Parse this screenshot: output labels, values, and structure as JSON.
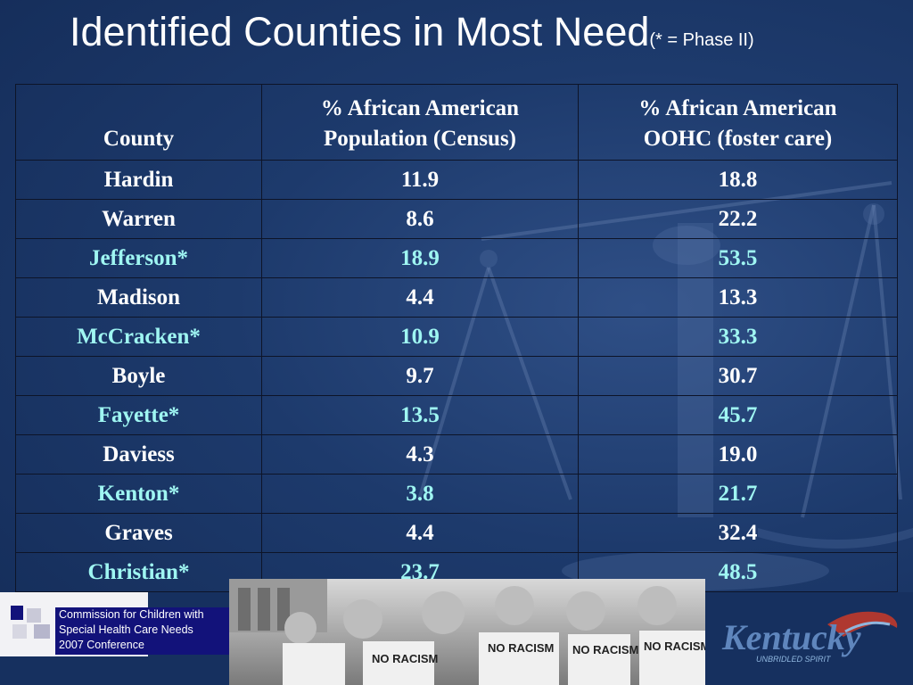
{
  "slide": {
    "title": "Identified Counties in Most Need",
    "title_note": "(* = Phase II)"
  },
  "table": {
    "headers": {
      "county": "County",
      "population_line1": "% African American",
      "population_line2": "Population (Census)",
      "oohc_line1": "% African American",
      "oohc_line2": "OOHC (foster care)"
    },
    "rows": [
      {
        "county": "Hardin",
        "population": "11.9",
        "oohc": "18.8"
      },
      {
        "county": "Warren",
        "population": "8.6",
        "oohc": "22.2"
      },
      {
        "county": "Jefferson*",
        "population": "18.9",
        "oohc": "53.5"
      },
      {
        "county": "Madison",
        "population": "4.4",
        "oohc": "13.3"
      },
      {
        "county": "McCracken*",
        "population": "10.9",
        "oohc": "33.3"
      },
      {
        "county": "Boyle",
        "population": "9.7",
        "oohc": "30.7"
      },
      {
        "county": "Fayette*",
        "population": "13.5",
        "oohc": "45.7"
      },
      {
        "county": "Daviess",
        "population": "4.3",
        "oohc": "19.0"
      },
      {
        "county": "Kenton*",
        "population": "3.8",
        "oohc": "21.7"
      },
      {
        "county": "Graves",
        "population": "4.4",
        "oohc": "32.4"
      },
      {
        "county": "Christian*",
        "population": "23.7",
        "oohc": "48.5"
      }
    ]
  },
  "footer": {
    "commission_line1": "Commission for Children with",
    "commission_line2": "Special Health Care Needs",
    "commission_line3": "2007 Conference",
    "kentucky_logo": "Kentucky",
    "kentucky_tagline": "UNBRIDLED SPIRIT",
    "photo_signs": [
      "NO RACISM",
      "NO RACISM",
      "NO RACISM",
      "NO RACISM"
    ]
  },
  "colors": {
    "background": "#1d3a6c",
    "phase2_text": "#9ff6f2",
    "normal_text": "#ffffff",
    "commission_box": "#12127a"
  },
  "icons": {
    "background_art": "scales-of-justice-icon"
  }
}
